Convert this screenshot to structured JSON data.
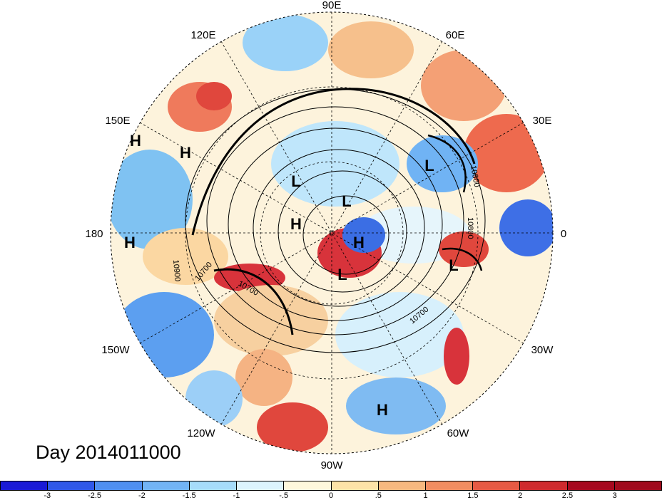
{
  "title": "Day 2014011000",
  "map": {
    "projection": "north-polar-stereographic",
    "longitude_labels": [
      "90E",
      "60E",
      "30E",
      "0",
      "30W",
      "60W",
      "90W",
      "120W",
      "150W",
      "180",
      "150E",
      "120E"
    ],
    "pressure_system_labels": [
      {
        "text": "H",
        "name": "high-150e-a"
      },
      {
        "text": "H",
        "name": "high-150e-b"
      },
      {
        "text": "H",
        "name": "high-180"
      },
      {
        "text": "L",
        "name": "low-siberia"
      },
      {
        "text": "L",
        "name": "low-eurasia"
      },
      {
        "text": "L",
        "name": "low-arctic"
      },
      {
        "text": "H",
        "name": "high-arctic-a"
      },
      {
        "text": "H",
        "name": "high-arctic-b"
      },
      {
        "text": "L",
        "name": "low-canada"
      },
      {
        "text": "L",
        "name": "low-europe-south"
      },
      {
        "text": "H",
        "name": "high-atlantic-south"
      }
    ],
    "contour_labels": [
      "10800",
      "10800",
      "10700",
      "10700",
      "10900",
      "10700"
    ]
  },
  "colorbar": {
    "tick_labels": [
      "-3",
      "-2.5",
      "-2",
      "-1.5",
      "-1",
      "-.5",
      "0",
      ".5",
      "1",
      "1.5",
      "2",
      "2.5",
      "3"
    ],
    "colors": [
      "#1a1ad6",
      "#2f58e8",
      "#4f8ff0",
      "#72b4f5",
      "#a6dcfa",
      "#dcf4fd",
      "#fff8dc",
      "#fde3a8",
      "#f7b87f",
      "#f28d61",
      "#e65a44",
      "#cf2a2e",
      "#a6081e",
      "#a00a1c"
    ]
  }
}
